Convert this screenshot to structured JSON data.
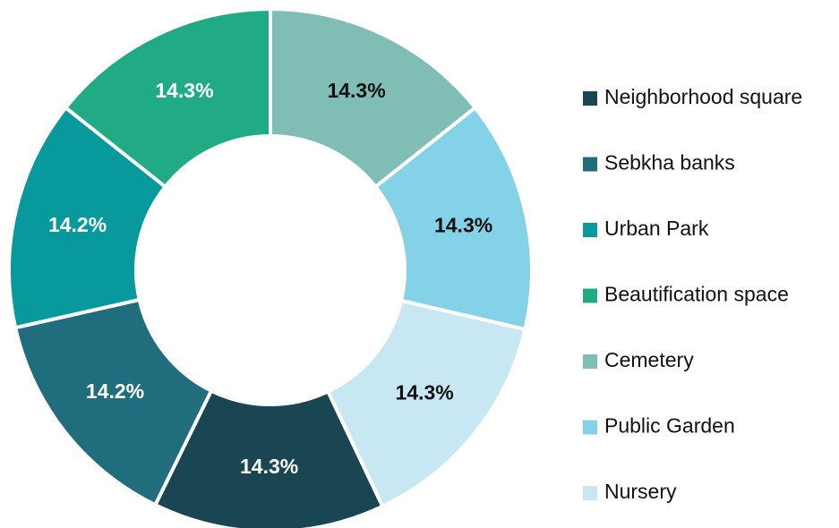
{
  "chart_data": {
    "type": "donut",
    "categories": [
      "Neighborhood square",
      "Sebkha banks",
      "Urban Park",
      "Beautification space",
      "Cemetery",
      "Public Garden",
      "Nursery"
    ],
    "values": [
      14.3,
      14.2,
      14.2,
      14.3,
      14.3,
      14.3,
      14.3
    ],
    "value_labels": [
      "14.3%",
      "14.2%",
      "14.2%",
      "14.3%",
      "14.3%",
      "14.3%",
      "14.3%"
    ],
    "colors": [
      "#1a4653",
      "#206e7d",
      "#07999b",
      "#20ab85",
      "#80bdb5",
      "#83d2e8",
      "#c7e8f2"
    ],
    "legend": "right"
  }
}
